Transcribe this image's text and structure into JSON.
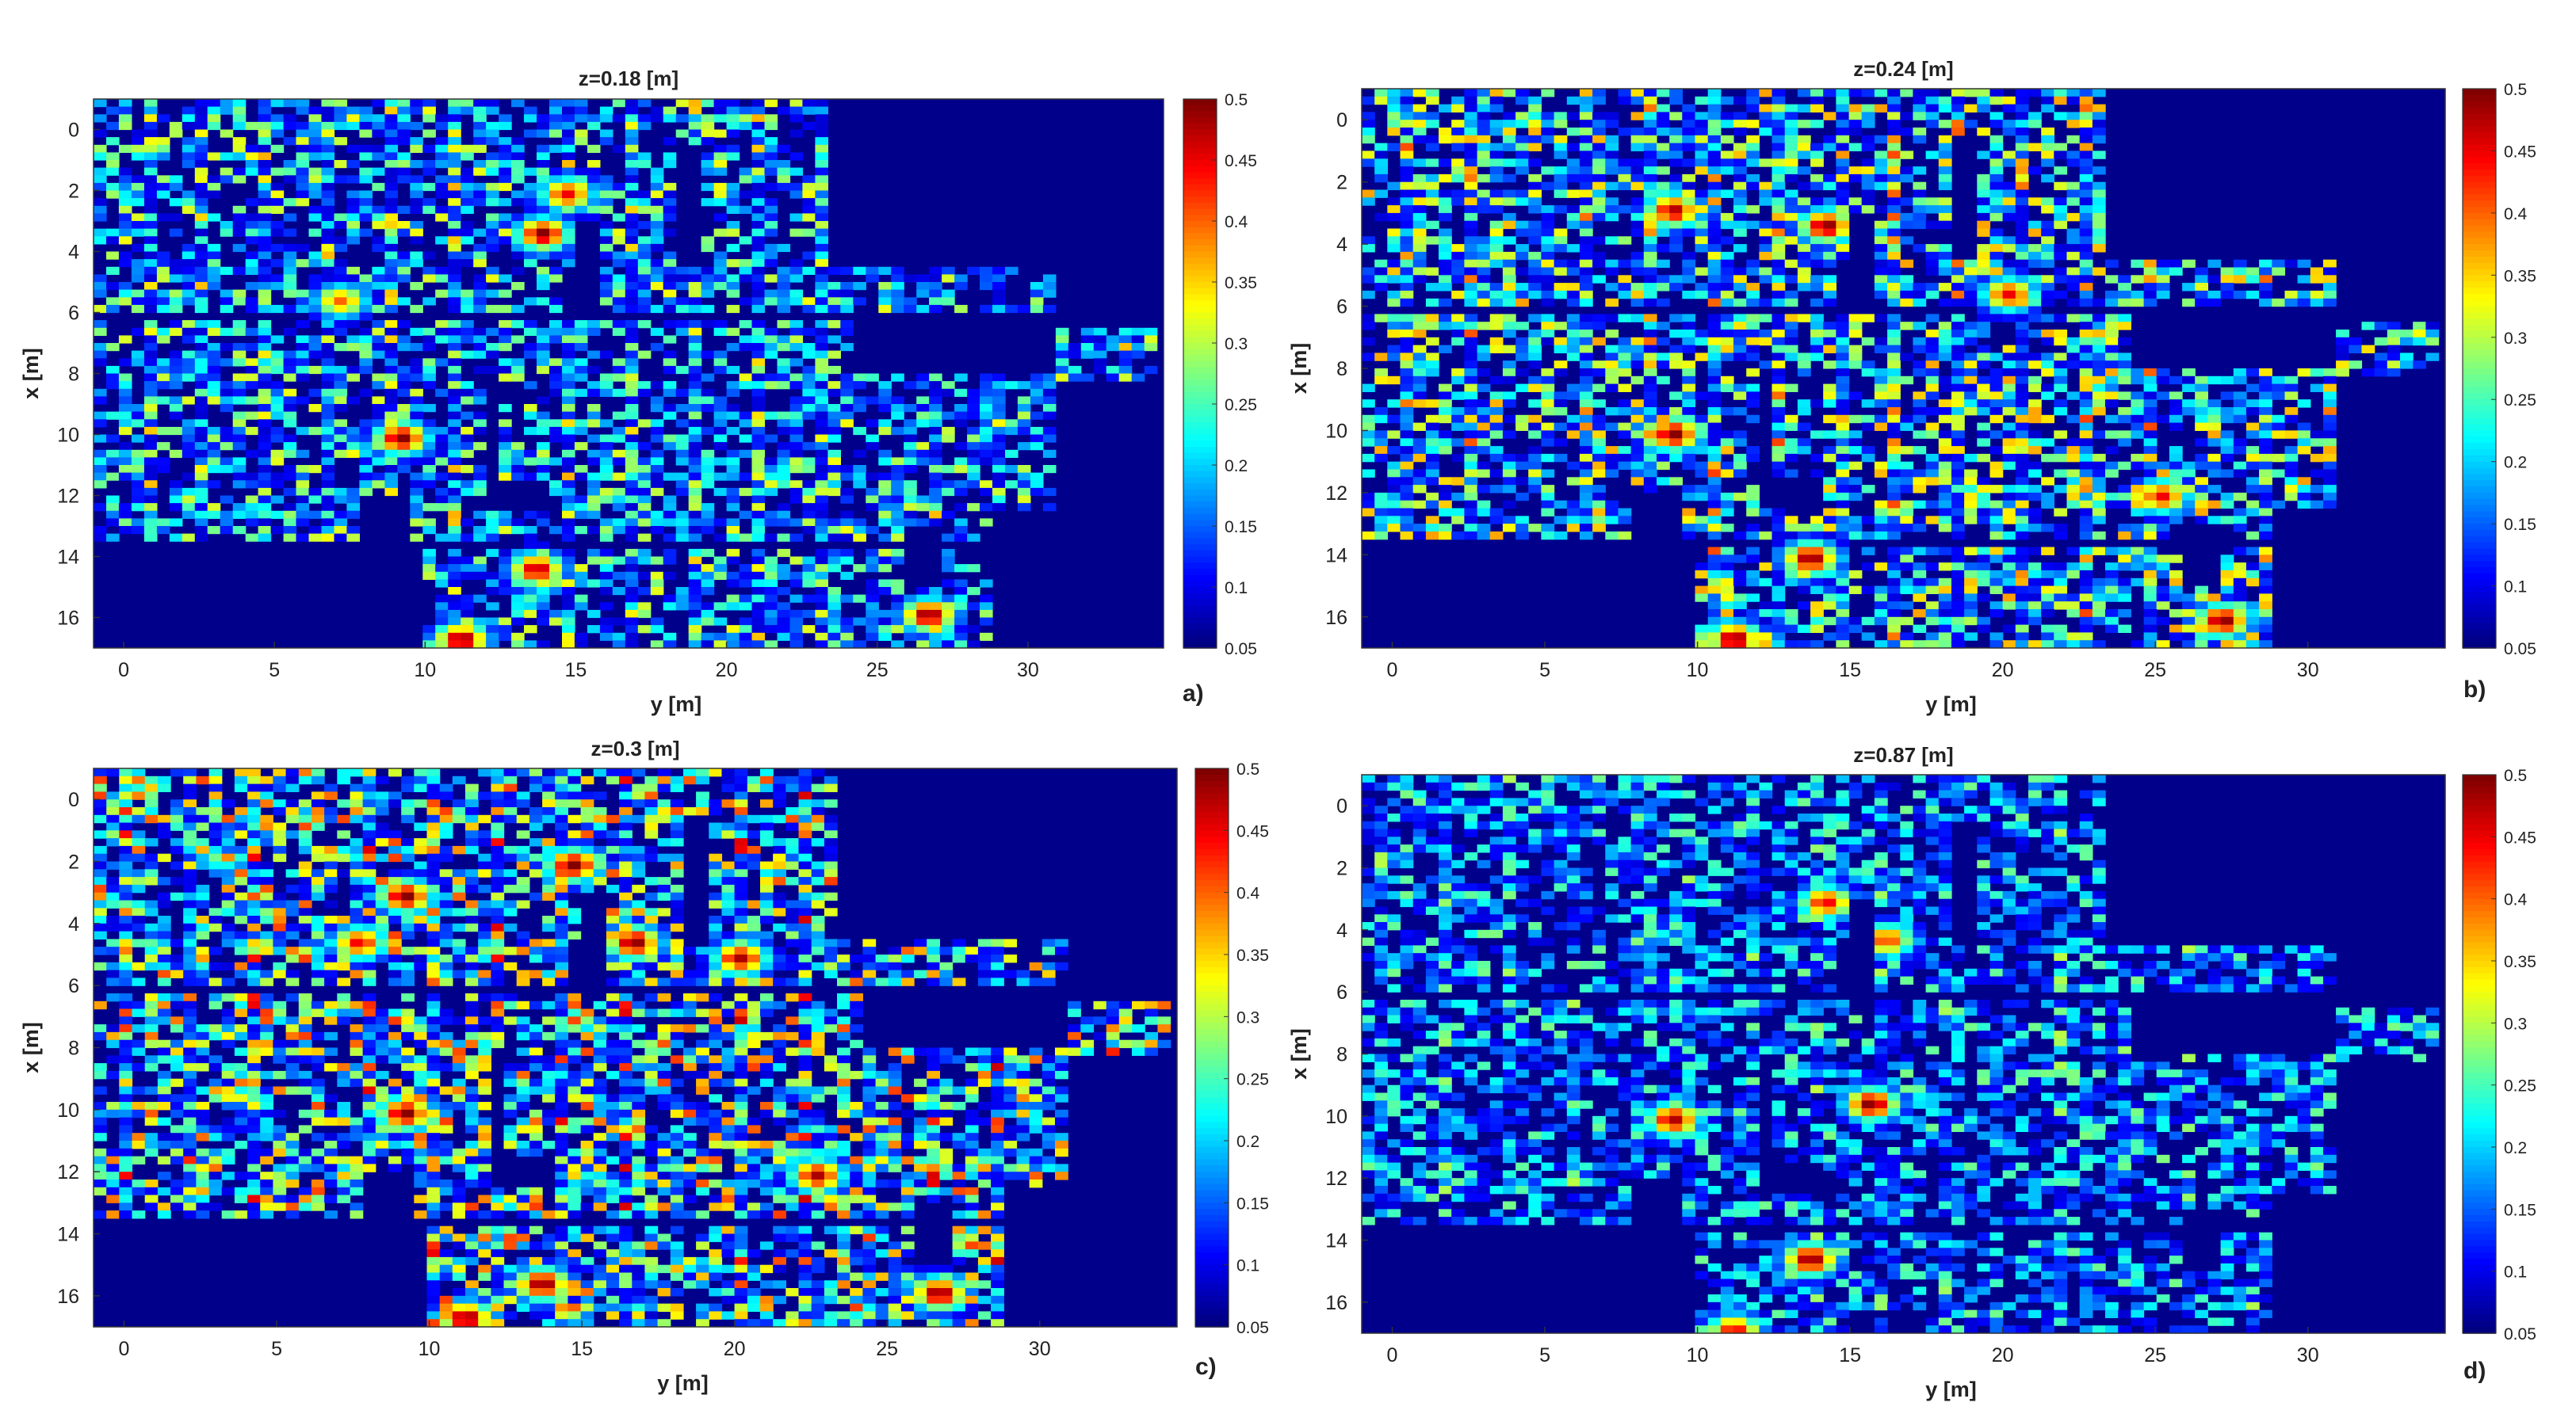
{
  "figure": {
    "colormap": "jet",
    "background_color": "#00008B",
    "colorbar": {
      "min": 0.05,
      "max": 0.5,
      "ticks": [
        "0.5",
        "0.45",
        "0.4",
        "0.35",
        "0.3",
        "0.25",
        "0.2",
        "0.15",
        "0.1",
        "0.05"
      ]
    },
    "x_ticks": [
      "0",
      "5",
      "10",
      "15",
      "20",
      "25",
      "30"
    ],
    "y_ticks": [
      "0",
      "2",
      "4",
      "6",
      "8",
      "10",
      "12",
      "14",
      "16"
    ],
    "xlabel": "y [m]",
    "ylabel": "x [m]"
  },
  "chart_data": [
    {
      "type": "heatmap",
      "panel_label": "a)",
      "title": "z=0.18 [m]",
      "xlabel": "y [m]",
      "ylabel": "x [m]",
      "xlim": [
        -1,
        34.5
      ],
      "ylim": [
        -1,
        17
      ],
      "y_reversed": true,
      "color_range": [
        0.05,
        0.5
      ],
      "intensity": 0.62,
      "hotspots": [
        {
          "x": 13.7,
          "y": 3.3,
          "value": 0.5
        },
        {
          "x": 9.0,
          "y": 10.0,
          "value": 0.5
        },
        {
          "x": 11.0,
          "y": 16.6,
          "value": 0.5
        },
        {
          "x": 13.5,
          "y": 14.3,
          "value": 0.48
        },
        {
          "x": 26.5,
          "y": 15.8,
          "value": 0.5
        },
        {
          "x": 14.5,
          "y": 2.0,
          "value": 0.45
        },
        {
          "x": 7.0,
          "y": 5.5,
          "value": 0.4
        }
      ]
    },
    {
      "type": "heatmap",
      "panel_label": "b)",
      "title": "z=0.24 [m]",
      "xlabel": "y [m]",
      "ylabel": "x [m]",
      "xlim": [
        -1,
        34.5
      ],
      "ylim": [
        -1,
        17
      ],
      "y_reversed": true,
      "color_range": [
        0.05,
        0.5
      ],
      "intensity": 0.72,
      "hotspots": [
        {
          "x": 14.0,
          "y": 3.3,
          "value": 0.5
        },
        {
          "x": 9.0,
          "y": 10.0,
          "value": 0.5
        },
        {
          "x": 11.0,
          "y": 16.6,
          "value": 0.5
        },
        {
          "x": 13.5,
          "y": 14.0,
          "value": 0.5
        },
        {
          "x": 27.0,
          "y": 16.0,
          "value": 0.5
        },
        {
          "x": 9.0,
          "y": 2.8,
          "value": 0.48
        },
        {
          "x": 20.0,
          "y": 5.5,
          "value": 0.45
        },
        {
          "x": 25.0,
          "y": 12.0,
          "value": 0.45
        }
      ]
    },
    {
      "type": "heatmap",
      "panel_label": "c)",
      "title": "z=0.3 [m]",
      "xlabel": "y [m]",
      "ylabel": "x [m]",
      "xlim": [
        -1,
        34.5
      ],
      "ylim": [
        -1,
        17
      ],
      "y_reversed": true,
      "color_range": [
        0.05,
        0.5
      ],
      "intensity": 0.82,
      "hotspots": [
        {
          "x": 9.0,
          "y": 3.0,
          "value": 0.5
        },
        {
          "x": 14.5,
          "y": 2.0,
          "value": 0.5
        },
        {
          "x": 16.5,
          "y": 4.5,
          "value": 0.5
        },
        {
          "x": 9.0,
          "y": 10.0,
          "value": 0.5
        },
        {
          "x": 11.0,
          "y": 16.6,
          "value": 0.5
        },
        {
          "x": 13.5,
          "y": 15.5,
          "value": 0.5
        },
        {
          "x": 26.5,
          "y": 15.8,
          "value": 0.5
        },
        {
          "x": 22.5,
          "y": 12.0,
          "value": 0.48
        },
        {
          "x": 20.0,
          "y": 5.0,
          "value": 0.48
        },
        {
          "x": 7.5,
          "y": 4.5,
          "value": 0.45
        }
      ]
    },
    {
      "type": "heatmap",
      "panel_label": "d)",
      "title": "z=0.87 [m]",
      "xlabel": "y [m]",
      "ylabel": "x [m]",
      "xlim": [
        -1,
        34.5
      ],
      "ylim": [
        -1,
        17
      ],
      "y_reversed": true,
      "color_range": [
        0.05,
        0.5
      ],
      "intensity": 0.5,
      "hotspots": [
        {
          "x": 15.5,
          "y": 9.5,
          "value": 0.5
        },
        {
          "x": 9.0,
          "y": 10.0,
          "value": 0.48
        },
        {
          "x": 13.5,
          "y": 14.5,
          "value": 0.5
        },
        {
          "x": 14.0,
          "y": 3.0,
          "value": 0.45
        },
        {
          "x": 16.0,
          "y": 4.2,
          "value": 0.42
        },
        {
          "x": 11.0,
          "y": 16.8,
          "value": 0.45
        }
      ]
    }
  ]
}
